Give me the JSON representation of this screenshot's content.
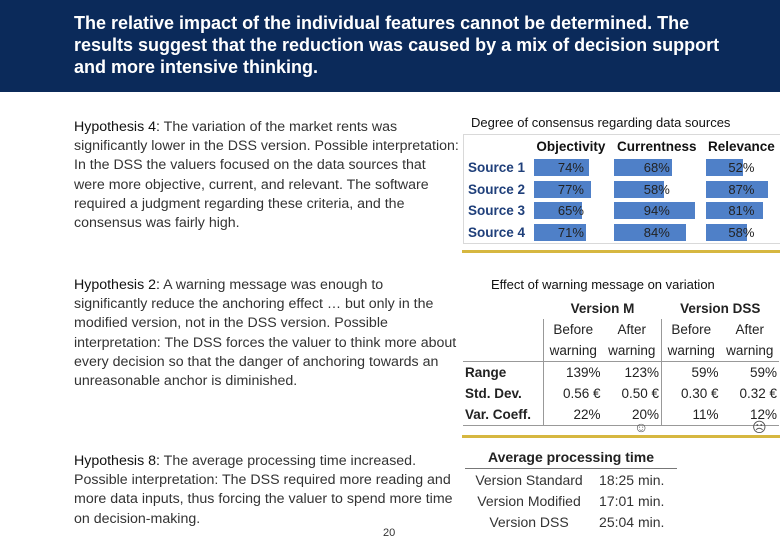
{
  "header": {
    "title": "The relative impact of the individual features cannot be determined. The results suggest that the reduction was caused by a mix of decision support and more intensive thinking."
  },
  "hypotheses": [
    {
      "label": "Hypothesis 4:",
      "text": " The variation of the market rents was significantly lower in the DSS version. Possible interpretation: In the DSS the valuers focused on the data sources that were more objective, current, and relevant. The software required a judgment regarding these criteria, and the consensus was fairly high."
    },
    {
      "label": "Hypothesis 2:",
      "text": " A warning message was enough to significantly reduce the anchoring effect … but only in the modified version, not in the DSS version. Possible interpretation: The DSS forces the valuer to think more about every decision so that the danger of anchoring towards an unreasonable anchor is diminished."
    },
    {
      "label": "Hypothesis 8:",
      "text": " The average processing time increased. Possible interpretation: The DSS required more reading and more data inputs, thus forcing the valuer to spend more time on decision-making."
    }
  ],
  "consensus": {
    "caption": "Degree of consensus regarding data sources",
    "columns": [
      "Objectivity",
      "Currentness",
      "Relevance"
    ],
    "rows": [
      {
        "label": "Source 1",
        "values": [
          "74%",
          "68%",
          "52%"
        ],
        "fractions": [
          0.74,
          0.68,
          0.52
        ]
      },
      {
        "label": "Source 2",
        "values": [
          "77%",
          "58%",
          "87%"
        ],
        "fractions": [
          0.77,
          0.58,
          0.87
        ]
      },
      {
        "label": "Source 3",
        "values": [
          "65%",
          "94%",
          "81%"
        ],
        "fractions": [
          0.65,
          0.94,
          0.81
        ]
      },
      {
        "label": "Source 4",
        "values": [
          "71%",
          "84%",
          "58%"
        ],
        "fractions": [
          0.71,
          0.84,
          0.58
        ]
      }
    ],
    "bar_color": "#4f80c8"
  },
  "warning": {
    "caption": "Effect of warning message on variation",
    "versions": [
      "Version M",
      "Version DSS"
    ],
    "sub_top": [
      "Before",
      "After",
      "Before",
      "After"
    ],
    "sub_bottom": [
      "warning",
      "warning",
      "warning",
      "warning"
    ],
    "rows": [
      {
        "label": "Range",
        "values": [
          "139%",
          "123%",
          "59%",
          "59%"
        ]
      },
      {
        "label": "Std. Dev.",
        "values": [
          "0.56 €",
          "0.50 €",
          "0.30 €",
          "0.32 €"
        ]
      },
      {
        "label": "Var. Coeff.",
        "values": [
          "22%",
          "20%",
          "11%",
          "12%"
        ]
      }
    ],
    "smile": "☺",
    "frown": "☹"
  },
  "processing": {
    "title": "Average processing time",
    "rows": [
      {
        "label": "Version Standard",
        "value": "18:25 min."
      },
      {
        "label": "Version Modified",
        "value": "17:01 min."
      },
      {
        "label": "Version DSS",
        "value": "25:04 min."
      }
    ]
  },
  "page_number": "20",
  "accent_color": "#d6b740",
  "header_color": "#0b2a5a"
}
